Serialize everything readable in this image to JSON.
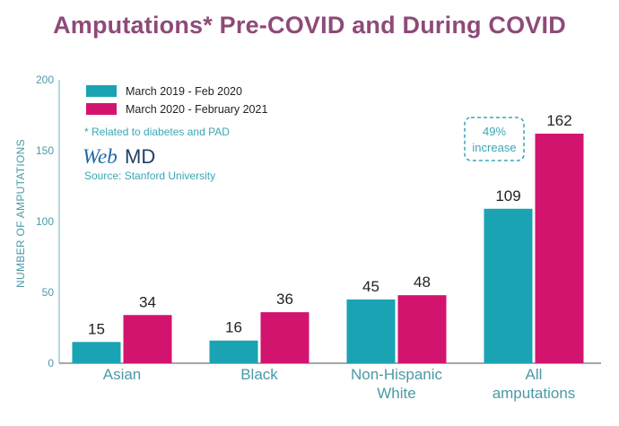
{
  "title": "Amputations* Pre-COVID and During COVID",
  "legend": {
    "items": [
      {
        "label": "March 2019 - Feb 2020",
        "color": "#1aa3b3"
      },
      {
        "label": "March 2020 - February 2021",
        "color": "#d2146f"
      }
    ]
  },
  "footnote": "* Related to diabetes and PAD",
  "logo": {
    "part1": "Web",
    "part2": "MD"
  },
  "source": "Source: Stanford University",
  "annotation": {
    "line1": "49%",
    "line2": "increase"
  },
  "chart_data": {
    "type": "bar",
    "title": "Amputations* Pre-COVID and During COVID",
    "ylabel": "NUMBER OF AMPUTATIONS",
    "ylim": [
      0,
      200
    ],
    "yticks": [
      0,
      50,
      100,
      150,
      200
    ],
    "categories": [
      [
        "Asian"
      ],
      [
        "Black"
      ],
      [
        "Non-Hispanic",
        "White"
      ],
      [
        "All",
        "amputations"
      ]
    ],
    "series": [
      {
        "name": "March 2019 - Feb 2020",
        "color": "#1aa3b3",
        "values": [
          15,
          16,
          45,
          109
        ]
      },
      {
        "name": "March 2020 - February 2021",
        "color": "#d2146f",
        "values": [
          34,
          36,
          48,
          162
        ]
      }
    ],
    "legend_position": "top-left",
    "grid": false
  }
}
